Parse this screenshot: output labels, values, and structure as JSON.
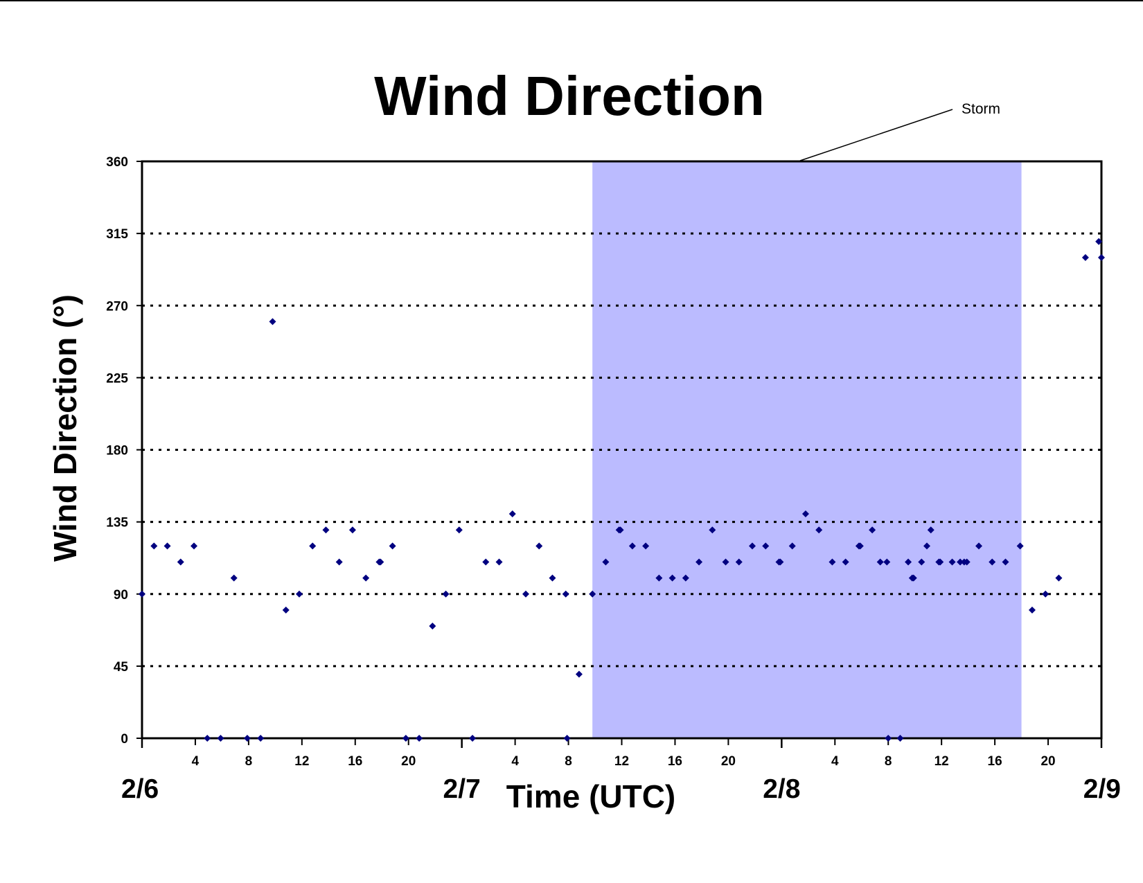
{
  "chart_data": {
    "type": "scatter",
    "title": "Wind Direction",
    "xlabel": "Time (UTC)",
    "ylabel": "Wind Direction (°)",
    "x_unit": "hours since 2/6 00 UTC",
    "xlim": [
      0,
      72
    ],
    "ylim": [
      0,
      360
    ],
    "y_ticks": [
      0,
      45,
      90,
      135,
      180,
      225,
      270,
      315,
      360
    ],
    "x_hour_ticks": [
      {
        "x": 4,
        "label": "4"
      },
      {
        "x": 8,
        "label": "8"
      },
      {
        "x": 12,
        "label": "12"
      },
      {
        "x": 16,
        "label": "16"
      },
      {
        "x": 20,
        "label": "20"
      },
      {
        "x": 28,
        "label": "4"
      },
      {
        "x": 32,
        "label": "8"
      },
      {
        "x": 36,
        "label": "12"
      },
      {
        "x": 40,
        "label": "16"
      },
      {
        "x": 44,
        "label": "20"
      },
      {
        "x": 52,
        "label": "4"
      },
      {
        "x": 56,
        "label": "8"
      },
      {
        "x": 60,
        "label": "12"
      },
      {
        "x": 64,
        "label": "16"
      },
      {
        "x": 68,
        "label": "20"
      }
    ],
    "x_day_labels": [
      {
        "x": 0,
        "label": "2/6"
      },
      {
        "x": 24,
        "label": "2/7"
      },
      {
        "x": 48,
        "label": "2/8"
      },
      {
        "x": 72,
        "label": "2/9"
      }
    ],
    "grid": "horizontal dotted",
    "shaded_region": {
      "label": "Storm",
      "x_start": 33.8,
      "x_end": 66,
      "color": "#BBBBFF"
    },
    "marker_color": "#000080",
    "series": [
      {
        "name": "",
        "points": [
          [
            0,
            90
          ],
          [
            0.9,
            120
          ],
          [
            1.9,
            120
          ],
          [
            2.9,
            110
          ],
          [
            3.9,
            120
          ],
          [
            4.9,
            0
          ],
          [
            5.9,
            0
          ],
          [
            6.9,
            100
          ],
          [
            7.9,
            0
          ],
          [
            8.9,
            0
          ],
          [
            9.8,
            260
          ],
          [
            10.8,
            80
          ],
          [
            11.8,
            90
          ],
          [
            12.8,
            120
          ],
          [
            13.8,
            130
          ],
          [
            14.8,
            110
          ],
          [
            15.8,
            130
          ],
          [
            16.8,
            100
          ],
          [
            17.8,
            110
          ],
          [
            17.9,
            110
          ],
          [
            18.8,
            120
          ],
          [
            19.8,
            0
          ],
          [
            20.8,
            0
          ],
          [
            21.8,
            70
          ],
          [
            22.8,
            90
          ],
          [
            23.8,
            130
          ],
          [
            24.8,
            0
          ],
          [
            25.8,
            110
          ],
          [
            26.8,
            110
          ],
          [
            27.8,
            140
          ],
          [
            28.8,
            90
          ],
          [
            29.8,
            120
          ],
          [
            30.8,
            100
          ],
          [
            31.8,
            90
          ],
          [
            31.9,
            0
          ],
          [
            32.8,
            40
          ],
          [
            33.8,
            90
          ],
          [
            34.8,
            110
          ],
          [
            35.8,
            130
          ],
          [
            35.9,
            130
          ],
          [
            36.8,
            120
          ],
          [
            37.8,
            120
          ],
          [
            38.8,
            100
          ],
          [
            39.8,
            100
          ],
          [
            40.8,
            100
          ],
          [
            41.8,
            110
          ],
          [
            42.8,
            130
          ],
          [
            43.8,
            110
          ],
          [
            44.8,
            110
          ],
          [
            45.8,
            120
          ],
          [
            46.8,
            120
          ],
          [
            47.8,
            110
          ],
          [
            47.9,
            110
          ],
          [
            48.8,
            120
          ],
          [
            49.8,
            140
          ],
          [
            50.8,
            130
          ],
          [
            51.8,
            110
          ],
          [
            52.8,
            110
          ],
          [
            53.8,
            120
          ],
          [
            53.9,
            120
          ],
          [
            54.8,
            130
          ],
          [
            55.4,
            110
          ],
          [
            55.9,
            110
          ],
          [
            56.0,
            0
          ],
          [
            56.9,
            0
          ],
          [
            57.5,
            110
          ],
          [
            57.8,
            100
          ],
          [
            57.9,
            100
          ],
          [
            58.5,
            110
          ],
          [
            58.9,
            120
          ],
          [
            59.2,
            130
          ],
          [
            59.8,
            110
          ],
          [
            59.9,
            110
          ],
          [
            60.8,
            110
          ],
          [
            61.4,
            110
          ],
          [
            61.7,
            110
          ],
          [
            61.9,
            110
          ],
          [
            62.8,
            120
          ],
          [
            63.8,
            110
          ],
          [
            64.8,
            110
          ],
          [
            65.9,
            120
          ],
          [
            66.8,
            80
          ],
          [
            67.8,
            90
          ],
          [
            68.8,
            100
          ],
          [
            70.8,
            300
          ],
          [
            71.8,
            310
          ],
          [
            72,
            300
          ]
        ]
      }
    ]
  }
}
